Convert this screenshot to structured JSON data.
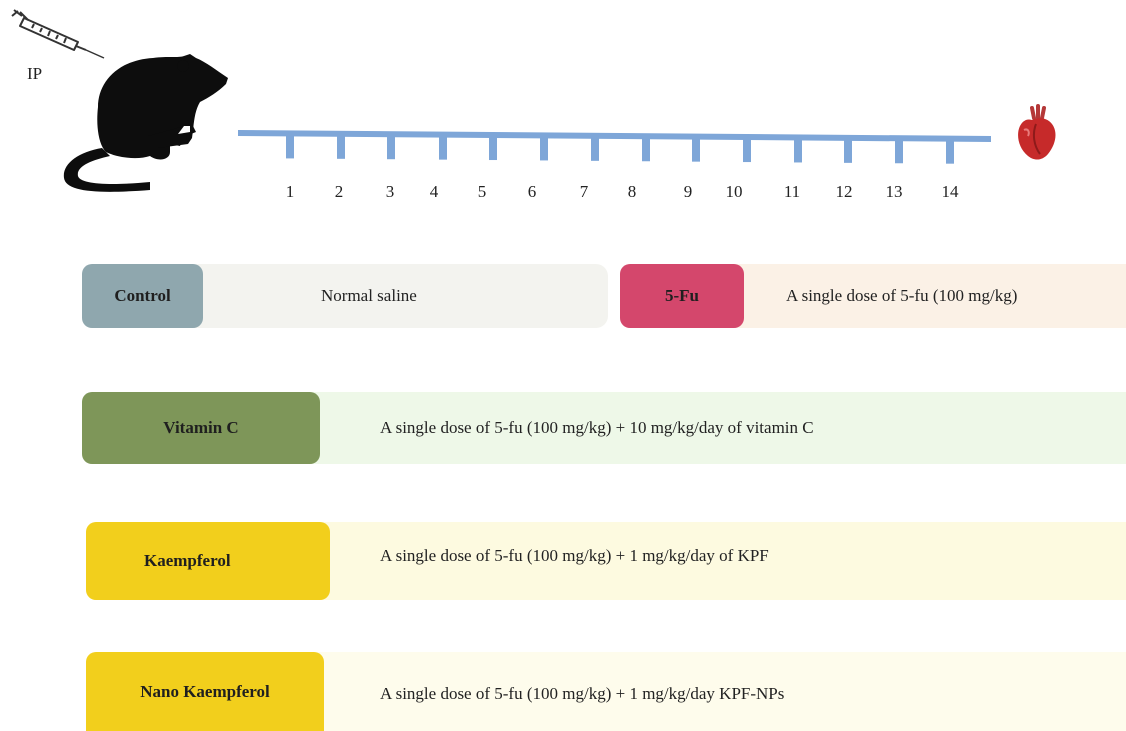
{
  "route_label": "IP",
  "timeline": {
    "days": [
      "1",
      "2",
      "3",
      "4",
      "5",
      "6",
      "7",
      "8",
      "9",
      "10",
      "11",
      "12",
      "13",
      "14"
    ],
    "color": "#7ea6d8"
  },
  "icons": [
    "syringe-icon",
    "rat-icon",
    "heart-icon"
  ],
  "groups": [
    {
      "name": "Control",
      "description": "Normal saline",
      "pill_color": "#8fa7ae",
      "bg_color": "#f3f3ef"
    },
    {
      "name": "5-Fu",
      "description": "A single dose of 5-fu (100 mg/kg)",
      "pill_color": "#d4476c",
      "bg_color": "#fbf1e6"
    },
    {
      "name": "Vitamin C",
      "description": "A single dose of 5-fu (100 mg/kg) + 10 mg/kg/day of vitamin C",
      "pill_color": "#7e9659",
      "bg_color": "#eef8e8"
    },
    {
      "name": "Kaempferol",
      "description": "A single dose of 5-fu (100 mg/kg) + 1 mg/kg/day of KPF",
      "pill_color": "#f2cf1c",
      "bg_color": "#fdfae0"
    },
    {
      "name": "Nano Kaempferol",
      "description": "A single dose of 5-fu (100 mg/kg) + 1 mg/kg/day KPF-NPs",
      "pill_color": "#f2cf1c",
      "bg_color": "#fefcec"
    }
  ]
}
